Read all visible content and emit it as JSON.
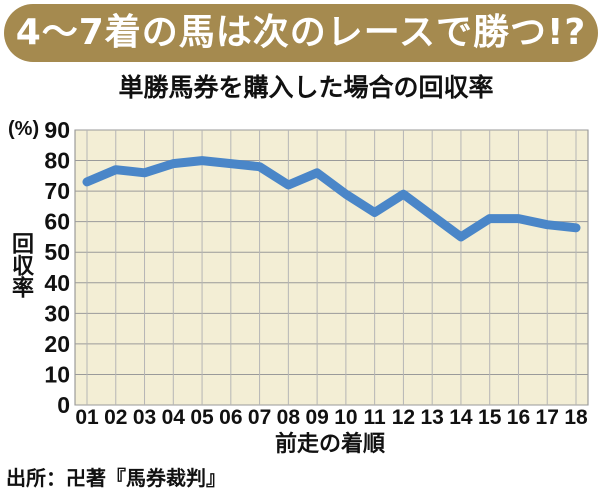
{
  "banner": {
    "title": "4～7着の馬は次のレースで勝つ!?"
  },
  "chart_data": {
    "type": "line",
    "title": "単勝馬券を購入した場合の回収率",
    "xlabel": "前走の着順",
    "ylabel": "回収率",
    "yunit": "(%)",
    "categories": [
      "01",
      "02",
      "03",
      "04",
      "05",
      "06",
      "07",
      "08",
      "09",
      "10",
      "11",
      "12",
      "13",
      "14",
      "15",
      "16",
      "17",
      "18"
    ],
    "series": [
      {
        "values": [
          73,
          77,
          76,
          79,
          80,
          79,
          78,
          72,
          76,
          69,
          63,
          69,
          62,
          55,
          61,
          61,
          59,
          58
        ]
      }
    ],
    "yticks": [
      0,
      10,
      20,
      30,
      40,
      50,
      60,
      70,
      80,
      90
    ],
    "ylim": [
      0,
      90
    ],
    "grid": true,
    "line_color": "#4a86c8",
    "plot_background": "#f3eed5"
  },
  "footer": {
    "source": "出所：卍著『馬券裁判』"
  }
}
